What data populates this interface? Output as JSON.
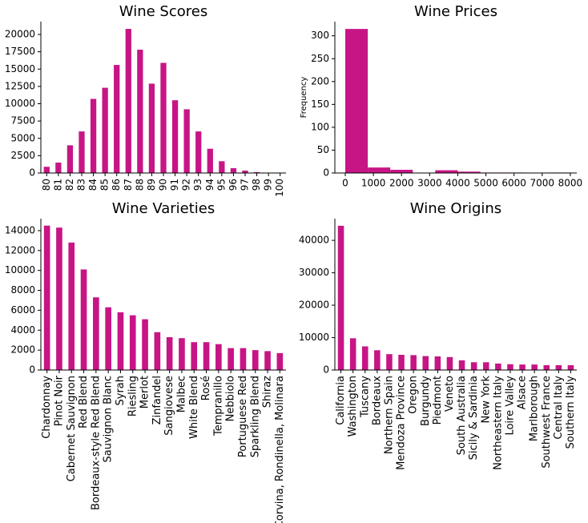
{
  "chart_data": [
    {
      "type": "bar",
      "title": "Wine Scores",
      "color": "#c71585",
      "categories": [
        "80",
        "81",
        "82",
        "83",
        "84",
        "85",
        "86",
        "87",
        "88",
        "89",
        "90",
        "91",
        "92",
        "93",
        "94",
        "95",
        "96",
        "97",
        "98",
        "99",
        "100"
      ],
      "values": [
        900,
        1500,
        4000,
        6000,
        10700,
        12300,
        15600,
        20800,
        17800,
        12900,
        15900,
        10500,
        9200,
        6000,
        3500,
        1700,
        700,
        350,
        130,
        40,
        20
      ],
      "ylim": [
        0,
        21850
      ],
      "yticks": [
        0,
        2500,
        5000,
        7500,
        10000,
        12500,
        15000,
        17500,
        20000
      ]
    },
    {
      "type": "histogram",
      "title": "Wine Prices",
      "ylabel": "Frequency",
      "color": "#c71585",
      "bins": [
        0,
        800,
        1600,
        2400,
        3200,
        4000,
        4800,
        5600,
        6400,
        7200,
        8000
      ],
      "counts": [
        315,
        12,
        7,
        0,
        6,
        3,
        1,
        1,
        0,
        1
      ],
      "xlim": [
        -370,
        8230
      ],
      "xticks": [
        0,
        1000,
        2000,
        3000,
        4000,
        5000,
        6000,
        7000,
        8000
      ],
      "ylim": [
        0,
        331
      ],
      "yticks": [
        0,
        50,
        100,
        150,
        200,
        250,
        300
      ]
    },
    {
      "type": "bar",
      "title": "Wine Varieties",
      "color": "#c71585",
      "categories": [
        "Chardonnay",
        "Pinot Noir",
        "Cabernet Sauvignon",
        "Red Blend",
        "Bordeaux-style Red Blend",
        "Sauvignon Blanc",
        "Syrah",
        "Riesling",
        "Merlot",
        "Zinfandel",
        "Sangiovese",
        "Malbec",
        "White Blend",
        "Rosé",
        "Tempranillo",
        "Nebbiolo",
        "Portuguese Red",
        "Sparkling Blend",
        "Shiraz",
        "Corvina, Rondinella, Molinara"
      ],
      "values": [
        14500,
        14300,
        12800,
        10100,
        7300,
        6300,
        5800,
        5500,
        5100,
        3800,
        3300,
        3200,
        2800,
        2800,
        2600,
        2200,
        2200,
        2000,
        1900,
        1700
      ],
      "ylim": [
        0,
        15200
      ],
      "yticks": [
        0,
        2000,
        4000,
        6000,
        8000,
        10000,
        12000,
        14000
      ]
    },
    {
      "type": "bar",
      "title": "Wine Origins",
      "color": "#c71585",
      "categories": [
        "California",
        "Washington",
        "Tuscany",
        "Bordeaux",
        "Northern Spain",
        "Mendoza Province",
        "Oregon",
        "Burgundy",
        "Piedmont",
        "Veneto",
        "South Australia",
        "Sicily & Sardinia",
        "New York",
        "Northeastern Italy",
        "Loire Valley",
        "Alsace",
        "Marlborough",
        "Southwest France",
        "Central Italy",
        "Southern Italy"
      ],
      "values": [
        44500,
        9800,
        7300,
        6100,
        4900,
        4700,
        4600,
        4300,
        4200,
        4000,
        3000,
        2400,
        2400,
        2000,
        1800,
        1700,
        1700,
        1500,
        1500,
        1500
      ],
      "ylim": [
        0,
        46700
      ],
      "yticks": [
        0,
        10000,
        20000,
        30000,
        40000
      ]
    }
  ]
}
